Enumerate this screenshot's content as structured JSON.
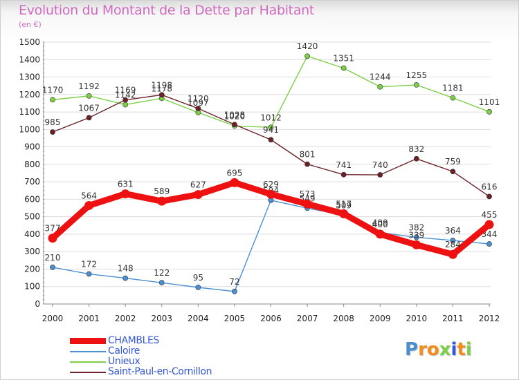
{
  "title": "Evolution du Montant de la Dette par Habitant",
  "subtitle": "(en €)",
  "colors": {
    "title": "#d06abf",
    "axis_text": "#222222",
    "grid": "#dddddd",
    "legend_text": "#3558d6"
  },
  "chart_data": {
    "type": "line",
    "title": "Evolution du Montant de la Dette par Habitant",
    "subtitle": "(en €)",
    "xlabel": "",
    "ylabel": "",
    "x": [
      "2000",
      "2001",
      "2002",
      "2003",
      "2004",
      "2005",
      "2006",
      "2007",
      "2008",
      "2009",
      "2010",
      "2011",
      "2012"
    ],
    "ylim": [
      0,
      1500
    ],
    "y_ticks": [
      0,
      100,
      200,
      300,
      400,
      500,
      600,
      700,
      800,
      900,
      1000,
      1100,
      1200,
      1300,
      1400,
      1500
    ],
    "grid": "horizontal",
    "legend_position": "bottom-left",
    "series": [
      {
        "name": "Caloire",
        "color": "#4a8fd0",
        "values": [
          210,
          172,
          148,
          122,
          95,
          72,
          594,
          549,
          509,
          409,
          382,
          364,
          344
        ],
        "labels": [
          "210",
          "172",
          "148",
          "122",
          "95",
          "72",
          "594",
          "549",
          "509",
          "409",
          "382",
          "364",
          "344"
        ]
      },
      {
        "name": "Unieux",
        "color": "#7ccf47",
        "values": [
          1170,
          1192,
          1142,
          1178,
          1097,
          1020,
          1012,
          1420,
          1351,
          1244,
          1255,
          1181,
          1101
        ],
        "labels": [
          "1170",
          "1192",
          "1142",
          "1178",
          "1097",
          "1020",
          "1012",
          "1420",
          "1351",
          "1244",
          "1255",
          "1181",
          "1101"
        ]
      },
      {
        "name": "Saint-Paul-en-Cornillon",
        "color": "#6b2127",
        "values": [
          985,
          1067,
          1169,
          1198,
          1120,
          1028,
          941,
          801,
          741,
          740,
          832,
          759,
          616
        ],
        "labels": [
          "985",
          "1067",
          "1169",
          "1198",
          "1120",
          "1028",
          "941",
          "801",
          "741",
          "740",
          "832",
          "759",
          "616"
        ]
      },
      {
        "name": "CHAMBLES",
        "color": "#ee1111",
        "values": [
          377,
          564,
          631,
          589,
          627,
          695,
          629,
          573,
          517,
          400,
          339,
          284,
          455
        ],
        "labels": [
          "377",
          "564",
          "631",
          "589",
          "627",
          "695",
          "629",
          "573",
          "517",
          "400",
          "339",
          "284",
          "455"
        ]
      }
    ]
  },
  "legend": [
    {
      "name": "CHAMBLES",
      "color": "#ee1111",
      "thick": true
    },
    {
      "name": "Caloire",
      "color": "#4a8fd0",
      "thick": false
    },
    {
      "name": "Unieux",
      "color": "#7ccf47",
      "thick": false
    },
    {
      "name": "Saint-Paul-en-Cornillon",
      "color": "#6b2127",
      "thick": false
    }
  ],
  "logo": {
    "text": "Proxiti",
    "letters": [
      "P",
      "r",
      "o",
      "x",
      "i",
      "t",
      "i"
    ],
    "letter_colors": [
      "#4a8fd0",
      "#f28c1c",
      "#f28c1c",
      "#7ccf47",
      "#3558d6",
      "#f28c1c",
      "#7ccf47"
    ]
  }
}
